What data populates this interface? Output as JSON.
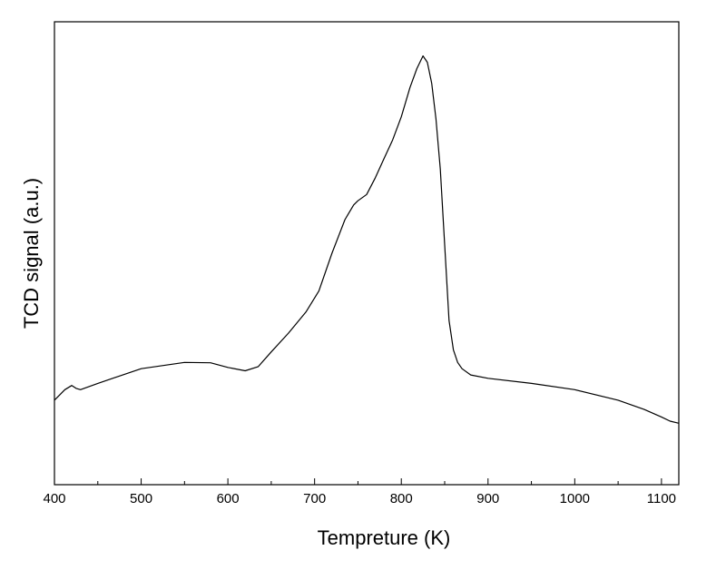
{
  "chart_data": {
    "type": "line",
    "title": "",
    "xlabel": "Tempreture  (K)",
    "ylabel": "TCD signal (a.u.)",
    "xlim": [
      400,
      1120
    ],
    "ylim": [
      0,
      1
    ],
    "y_ticks_labeled": false,
    "grid": false,
    "legend": "none",
    "x_ticks": [
      400,
      500,
      600,
      700,
      800,
      900,
      1000,
      1100
    ],
    "x_tick_labels": [
      "400",
      "500",
      "600",
      "700",
      "800",
      "900",
      "1000",
      "1100"
    ],
    "line_color": "#000000",
    "series": [
      {
        "x": [
          400,
          412,
          420,
          425,
          430,
          450,
          500,
          550,
          580,
          600,
          620,
          635,
          650,
          670,
          690,
          705,
          720,
          735,
          745,
          750,
          760,
          770,
          780,
          790,
          800,
          810,
          818,
          825,
          830,
          835,
          840,
          845,
          850,
          855,
          860,
          865,
          870,
          880,
          900,
          950,
          1000,
          1050,
          1080,
          1100,
          1110,
          1120
        ],
        "y": [
          0.17,
          0.195,
          0.205,
          0.198,
          0.195,
          0.21,
          0.245,
          0.26,
          0.259,
          0.248,
          0.24,
          0.25,
          0.285,
          0.33,
          0.38,
          0.43,
          0.52,
          0.6,
          0.635,
          0.645,
          0.66,
          0.7,
          0.745,
          0.79,
          0.845,
          0.915,
          0.96,
          0.99,
          0.975,
          0.925,
          0.84,
          0.72,
          0.54,
          0.36,
          0.29,
          0.26,
          0.245,
          0.23,
          0.222,
          0.21,
          0.195,
          0.17,
          0.148,
          0.13,
          0.12,
          0.115
        ]
      }
    ]
  }
}
